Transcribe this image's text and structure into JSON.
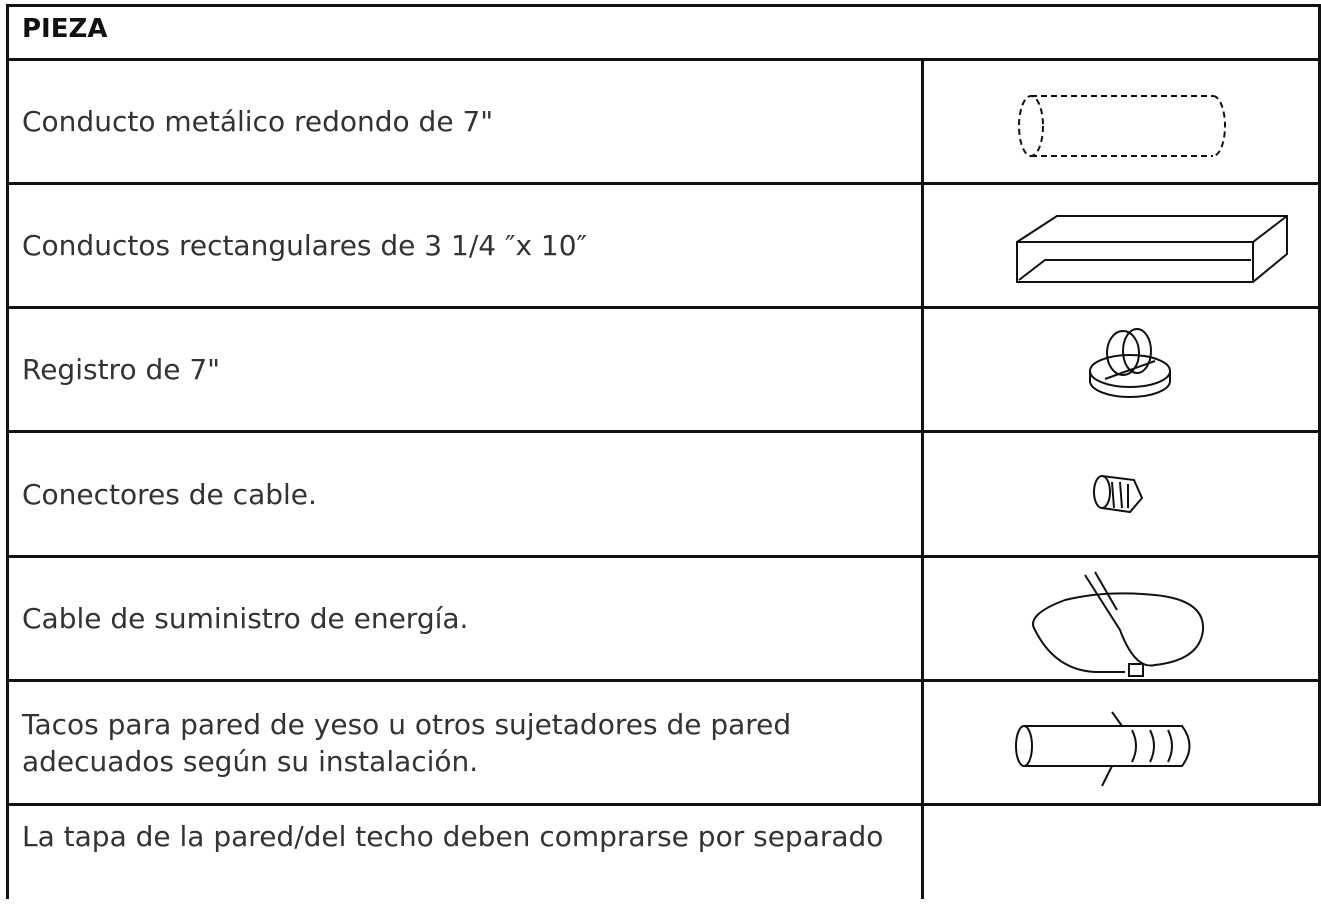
{
  "header": {
    "title": "PIEZA"
  },
  "table": {
    "rows": [
      "Conducto metálico redondo de 7\"",
      "Conductos rectangulares de 3 1/4 ″x 10″",
      "Registro de 7\"",
      "Conectores de cable.",
      "Cable de suministro de energía.",
      "Tacos para pared de yeso u otros sujetadores de pared adecuados según su instalación.",
      "La tapa de la pared/del techo deben comprarse por separado"
    ]
  }
}
